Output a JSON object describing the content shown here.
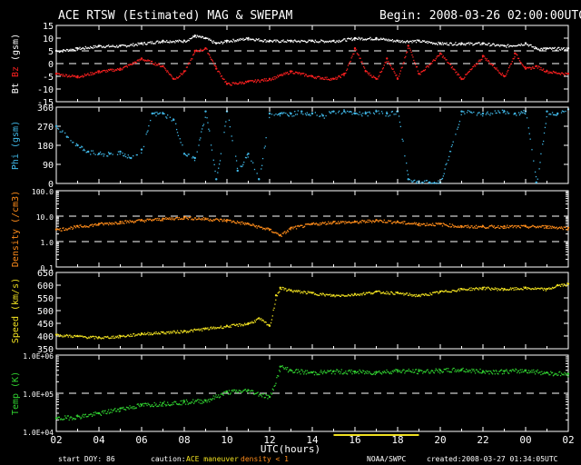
{
  "header": {
    "title": "ACE RTSW (Estimated) MAG & SWEPAM",
    "begin": "Begin: 2008-03-26 02:00:00UTC"
  },
  "footer": {
    "start_doy_label": "start DOY:",
    "start_doy": "86",
    "caution_label": "caution:",
    "caution_maneuver": "ACE maneuver",
    "caution_density": "density < 1",
    "source": "NOAA/SWPC",
    "created": "created:2008-03-27 01:34:05UTC"
  },
  "colors": {
    "background": "#000000",
    "axes": "#ffffff",
    "bt": "#ffffff",
    "bz": "#ff2020",
    "phi": "#40b8e8",
    "density": "#ff8c1a",
    "speed": "#f0e020",
    "temp": "#30d030",
    "maneuver": "#f0e020",
    "density_caution": "#ff8c1a"
  },
  "chart_data": [
    {
      "type": "scatter",
      "panel": "mag",
      "ylabel_parts": [
        "Bt",
        "Bz",
        "(gsm)"
      ],
      "ylim": [
        -15,
        15
      ],
      "yticks": [
        "15",
        "10",
        "5",
        "0",
        "-5",
        "-10",
        "-15"
      ],
      "ytick_values": [
        15,
        10,
        5,
        0,
        -5,
        -10,
        -15
      ],
      "reference_lines": [
        5,
        0
      ],
      "series": [
        {
          "name": "Bt",
          "x": [
            2,
            3,
            4,
            5,
            6,
            7,
            8,
            8.5,
            9,
            9.5,
            10,
            11,
            12,
            13,
            14,
            15,
            16,
            17,
            18,
            19,
            20,
            21,
            22,
            23,
            24,
            24.5,
            25,
            26
          ],
          "y": [
            5,
            6,
            7,
            7,
            8,
            9,
            9,
            11,
            10,
            8,
            9,
            10,
            9,
            9,
            9,
            9,
            10,
            10,
            9,
            9,
            8,
            8,
            8,
            7,
            8,
            6,
            6,
            6
          ]
        },
        {
          "name": "Bz",
          "x": [
            2,
            3,
            4,
            5,
            6,
            7,
            7.5,
            8,
            8.5,
            9,
            9.5,
            10,
            11,
            12,
            13,
            14,
            15,
            15.5,
            16,
            16.5,
            17,
            17.5,
            18,
            18.5,
            19,
            20,
            21,
            22,
            23,
            23.5,
            24,
            24.5,
            25,
            26
          ],
          "y": [
            -4,
            -5,
            -3,
            -2,
            2,
            -1,
            -6,
            -3,
            5,
            6,
            -2,
            -8,
            -7,
            -6,
            -3,
            -5,
            -6,
            -4,
            6,
            -3,
            -6,
            2,
            -6,
            7,
            -4,
            4,
            -6,
            3,
            -5,
            4,
            -2,
            -1,
            -3,
            -4
          ]
        }
      ]
    },
    {
      "type": "scatter",
      "panel": "phi",
      "ylabel": "Phi (gsm)",
      "ylim": [
        0,
        360
      ],
      "yticks": [
        "360",
        "270",
        "180",
        "90",
        "0"
      ],
      "ytick_values": [
        360,
        270,
        180,
        90,
        0
      ],
      "series": [
        {
          "name": "Phi",
          "x": [
            2,
            2.5,
            3,
            3.5,
            4,
            4.5,
            5,
            5.5,
            6,
            6.5,
            7,
            7.5,
            8,
            8.5,
            9,
            9.5,
            10,
            10.5,
            11,
            11.5,
            12,
            12.5,
            13,
            13.5,
            14,
            14.5,
            15,
            15.5,
            16,
            16.5,
            17,
            17.5,
            18,
            18.5,
            19,
            19.5,
            20,
            21,
            22,
            23,
            23.5,
            24,
            24.5,
            25,
            25.5,
            26
          ],
          "y": [
            270,
            220,
            180,
            150,
            140,
            140,
            150,
            120,
            160,
            330,
            330,
            300,
            140,
            120,
            340,
            20,
            340,
            60,
            140,
            20,
            330,
            330,
            330,
            340,
            330,
            320,
            340,
            340,
            330,
            330,
            340,
            330,
            340,
            20,
            10,
            5,
            5,
            340,
            330,
            340,
            330,
            340,
            5,
            340,
            330,
            350
          ]
        }
      ]
    },
    {
      "type": "scatter",
      "panel": "density",
      "ylabel": "Density (/cm3)",
      "log": true,
      "ylim": [
        0.1,
        100
      ],
      "yticks": [
        "100.0",
        "10.0",
        "1.0",
        "0.1"
      ],
      "ytick_values": [
        100,
        10,
        1,
        0.1
      ],
      "reference_lines": [
        10,
        1
      ],
      "series": [
        {
          "name": "Density",
          "x": [
            2,
            3,
            4,
            5,
            6,
            7,
            8,
            9,
            10,
            11,
            12,
            12.5,
            13,
            14,
            15,
            16,
            17,
            18,
            19,
            20,
            21,
            22,
            23,
            24,
            25,
            26
          ],
          "y": [
            3,
            4,
            5,
            6,
            7,
            8,
            9,
            8,
            7,
            5,
            3,
            1.8,
            3.5,
            5,
            6,
            6,
            7,
            6,
            5,
            5,
            4,
            4,
            4,
            4,
            4,
            3.5
          ]
        }
      ]
    },
    {
      "type": "scatter",
      "panel": "speed",
      "ylabel": "Speed (km/s)",
      "ylim": [
        350,
        650
      ],
      "yticks": [
        "650",
        "600",
        "550",
        "500",
        "450",
        "400",
        "350"
      ],
      "ytick_values": [
        650,
        600,
        550,
        500,
        450,
        400,
        350
      ],
      "series": [
        {
          "name": "Speed",
          "x": [
            2,
            3,
            4,
            5,
            6,
            7,
            8,
            9,
            10,
            11,
            11.5,
            12,
            12.3,
            12.5,
            13,
            14,
            15,
            16,
            17,
            18,
            19,
            20,
            21,
            22,
            23,
            24,
            25,
            25.5,
            26
          ],
          "y": [
            405,
            400,
            395,
            400,
            410,
            415,
            420,
            430,
            440,
            450,
            470,
            440,
            560,
            590,
            580,
            570,
            560,
            565,
            575,
            570,
            560,
            575,
            585,
            590,
            585,
            590,
            585,
            600,
            605
          ]
        }
      ]
    },
    {
      "type": "scatter",
      "panel": "temp",
      "ylabel": "Temp (K)",
      "log": true,
      "ylim": [
        10000,
        1000000
      ],
      "yticks": [
        "1.0E+06",
        "1.0E+05",
        "1.0E+04"
      ],
      "ytick_values": [
        1000000,
        100000,
        10000
      ],
      "reference_lines": [
        100000
      ],
      "series": [
        {
          "name": "Temp",
          "x": [
            2,
            3,
            4,
            5,
            6,
            7,
            8,
            9,
            10,
            11,
            12,
            12.5,
            13,
            14,
            15,
            16,
            17,
            18,
            19,
            20,
            21,
            22,
            23,
            24,
            25,
            26
          ],
          "y": [
            22000,
            25000,
            30000,
            40000,
            50000,
            55000,
            60000,
            65000,
            110000,
            120000,
            80000,
            500000,
            400000,
            350000,
            380000,
            370000,
            360000,
            400000,
            380000,
            400000,
            420000,
            380000,
            380000,
            400000,
            350000,
            320000
          ]
        }
      ]
    }
  ],
  "x_axis": {
    "label": "UTC(hours)",
    "ticks": [
      "02",
      "04",
      "06",
      "08",
      "10",
      "12",
      "14",
      "16",
      "18",
      "20",
      "22",
      "00",
      "02"
    ],
    "tick_hours": [
      2,
      4,
      6,
      8,
      10,
      12,
      14,
      16,
      18,
      20,
      22,
      24,
      26
    ],
    "xlim": [
      2,
      26
    ],
    "maneuver_span": [
      15,
      19
    ]
  }
}
